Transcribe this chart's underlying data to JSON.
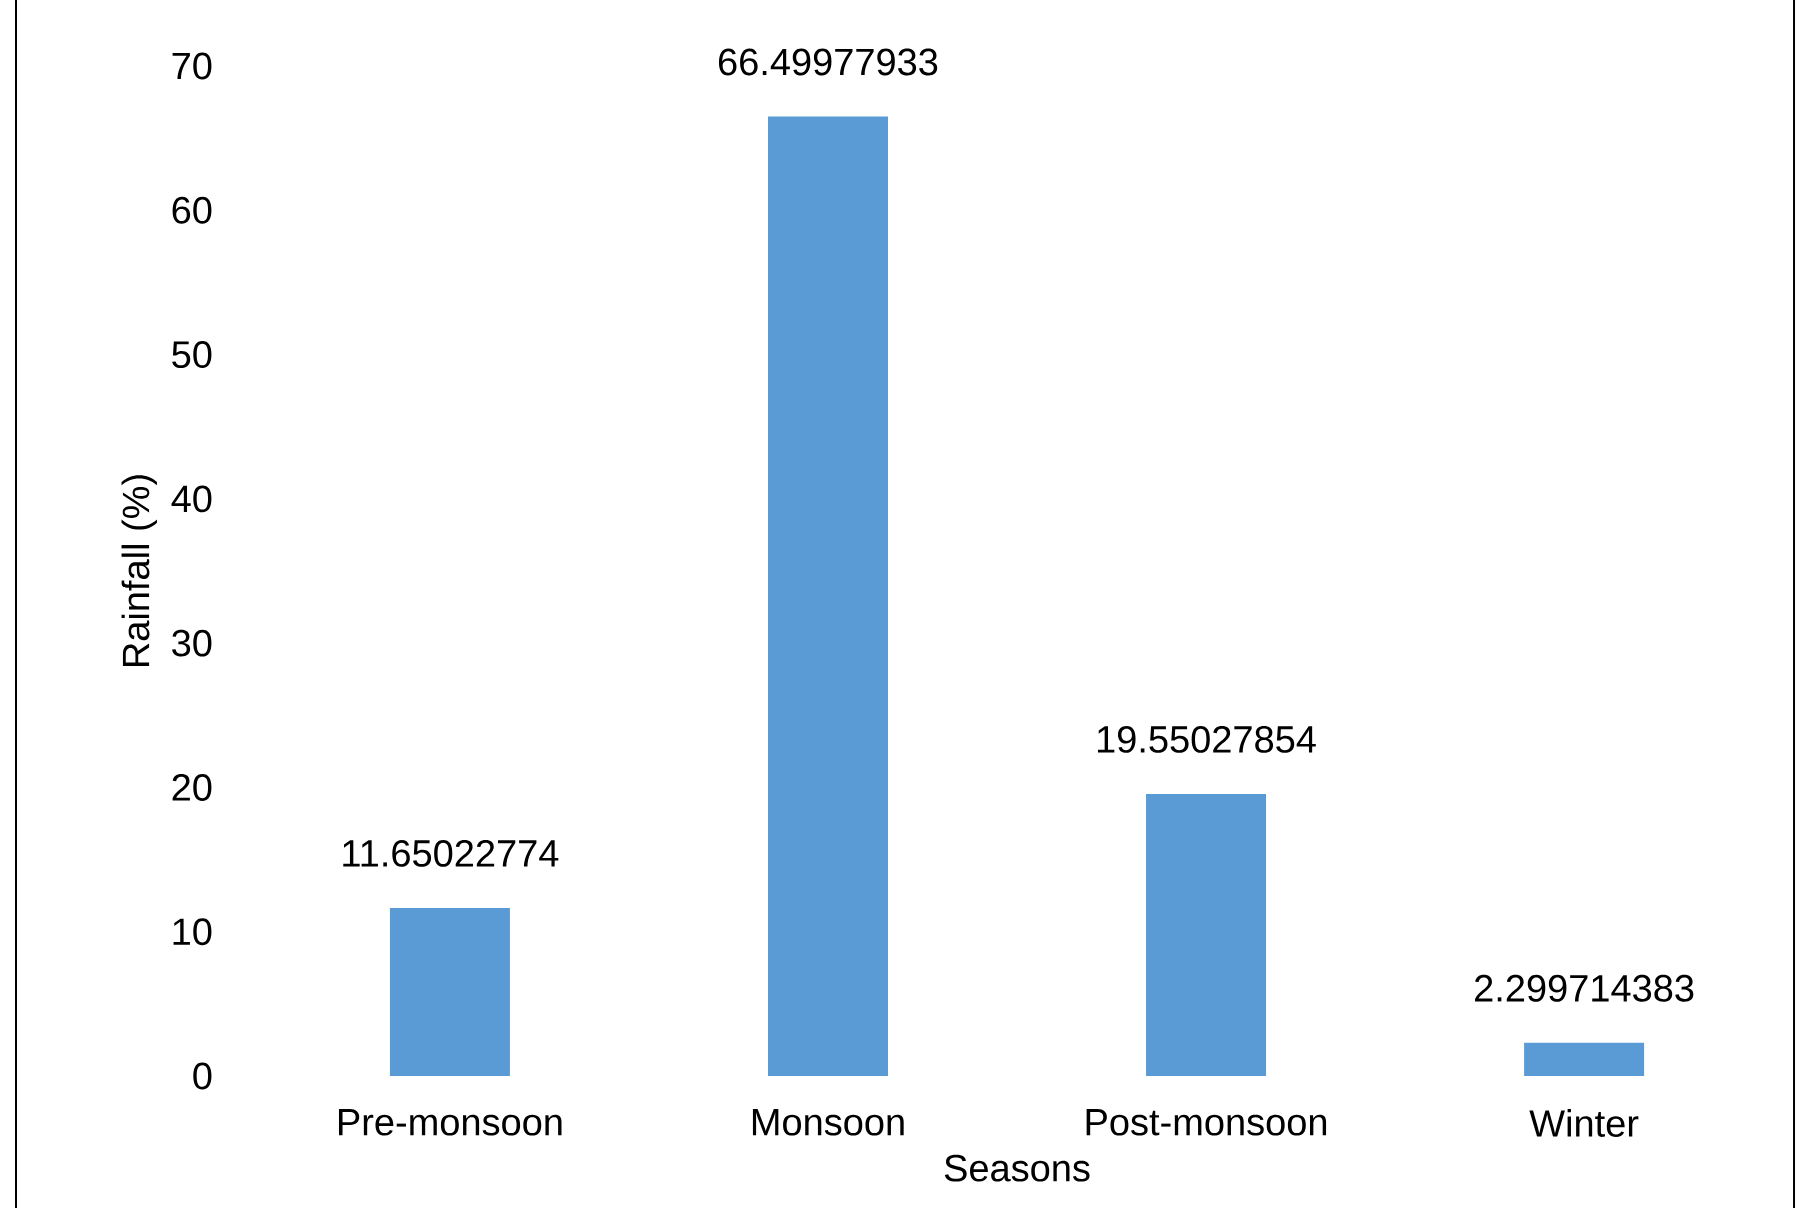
{
  "chart_data": {
    "type": "bar",
    "xlabel": "Seasons",
    "ylabel": "Rainfall (%)",
    "categories": [
      "Pre-monsoon",
      "Monsoon",
      "Post-monsoon",
      "Winter"
    ],
    "values": [
      11.65022774,
      66.49977933,
      19.55027854,
      2.299714383
    ],
    "value_labels": [
      "11.65022774",
      "66.49977933",
      "19.55027854",
      "2.299714383"
    ],
    "color": "#5b9bd5",
    "ylim": [
      0,
      70
    ],
    "yticks": [
      0,
      10,
      20,
      30,
      40,
      50,
      60,
      70
    ],
    "grid": false
  }
}
